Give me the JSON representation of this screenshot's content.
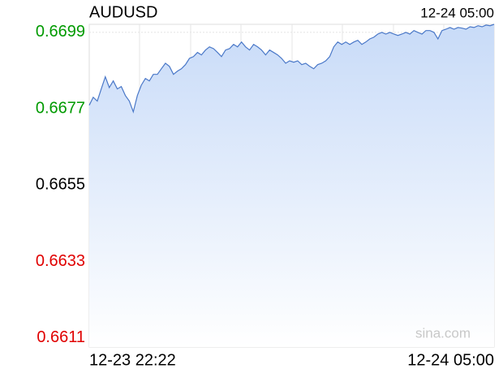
{
  "chart_data": {
    "type": "area",
    "title": "AUDUSD",
    "time": "12-24 05:00",
    "watermark": "sina.com",
    "categories": [
      "12-23 22:22",
      null,
      null,
      null,
      null,
      null,
      null,
      null,
      null,
      null,
      null,
      null,
      null,
      null,
      null,
      null,
      null,
      null,
      null,
      null,
      null,
      null,
      null,
      null,
      null,
      null,
      null,
      null,
      null,
      null,
      null,
      null,
      null,
      null,
      null,
      null,
      null,
      null,
      null,
      null,
      null,
      null,
      null,
      null,
      null,
      null,
      null,
      null,
      null,
      null,
      null,
      null,
      null,
      null,
      null,
      null,
      null,
      null,
      null,
      null,
      null,
      null,
      null,
      null,
      null,
      null,
      null,
      null,
      null,
      null,
      null,
      null,
      null,
      null,
      null,
      null,
      null,
      null,
      null,
      null,
      null,
      null,
      null,
      null,
      null,
      null,
      null,
      null,
      null,
      null,
      null,
      null,
      null,
      null,
      null,
      null,
      null,
      null,
      null,
      null,
      null,
      "12-24 05:00"
    ],
    "series": [
      {
        "name": "AUDUSD",
        "color": "#4a78c8",
        "values": [
          0.6678,
          0.66803,
          0.66792,
          0.66827,
          0.66862,
          0.66831,
          0.6685,
          0.66827,
          0.66834,
          0.66808,
          0.66792,
          0.66761,
          0.66808,
          0.66838,
          0.66857,
          0.6685,
          0.66869,
          0.66869,
          0.66885,
          0.66901,
          0.66892,
          0.66869,
          0.66878,
          0.66885,
          0.66897,
          0.66915,
          0.6692,
          0.66932,
          0.66925,
          0.66939,
          0.66948,
          0.66943,
          0.66932,
          0.6692,
          0.66939,
          0.66943,
          0.66955,
          0.66948,
          0.66962,
          0.66948,
          0.66939,
          0.66955,
          0.66948,
          0.66939,
          0.66925,
          0.66939,
          0.66932,
          0.66925,
          0.66915,
          0.66901,
          0.66908,
          0.66904,
          0.66908,
          0.66897,
          0.66901,
          0.66892,
          0.66885,
          0.66897,
          0.66901,
          0.66908,
          0.6692,
          0.66948,
          0.66962,
          0.66955,
          0.66962,
          0.66955,
          0.66962,
          0.66967,
          0.66955,
          0.66962,
          0.66971,
          0.66976,
          0.66985,
          0.6699,
          0.66985,
          0.6699,
          0.66985,
          0.66981,
          0.66985,
          0.6699,
          0.66985,
          0.66995,
          0.6699,
          0.66985,
          0.66995,
          0.66995,
          0.6699,
          0.66971,
          0.66995,
          0.66999,
          0.67004,
          0.66999,
          0.67004,
          0.67002,
          0.66999,
          0.67006,
          0.67004,
          0.67009,
          0.67006,
          0.67011,
          0.67009,
          0.67013
        ]
      }
    ],
    "ylim": [
      0.66084,
      0.67013
    ],
    "yticks": [
      0.6611,
      0.6633,
      0.6655,
      0.6677,
      0.6699
    ],
    "reference": 0.6655,
    "up_color": "#009a00",
    "down_color": "#e00000",
    "grid": true
  }
}
